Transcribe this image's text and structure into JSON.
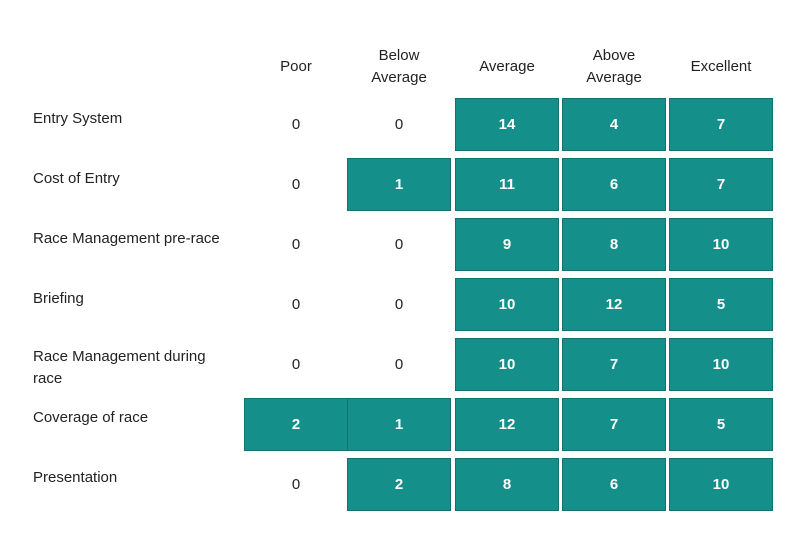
{
  "colors": {
    "filled": "#148f8a",
    "filled_border": "#0f7470",
    "filled_text": "#ffffff",
    "text": "#222222"
  },
  "chart_data": {
    "type": "table",
    "columns": [
      "Poor",
      "Below\nAverage",
      "Average",
      "Above\nAverage",
      "Excellent"
    ],
    "rows": [
      {
        "label": "Entry System",
        "values": [
          0,
          0,
          14,
          4,
          7
        ]
      },
      {
        "label": "Cost of Entry",
        "values": [
          0,
          1,
          11,
          6,
          7
        ]
      },
      {
        "label": "Race Management pre-race",
        "values": [
          0,
          0,
          9,
          8,
          10
        ]
      },
      {
        "label": "Briefing",
        "values": [
          0,
          0,
          10,
          12,
          5
        ]
      },
      {
        "label": "Race Management during race",
        "values": [
          0,
          0,
          10,
          7,
          10
        ]
      },
      {
        "label": "Coverage of race",
        "values": [
          2,
          1,
          12,
          7,
          5
        ]
      },
      {
        "label": "Presentation",
        "values": [
          0,
          2,
          8,
          6,
          10
        ]
      }
    ]
  }
}
